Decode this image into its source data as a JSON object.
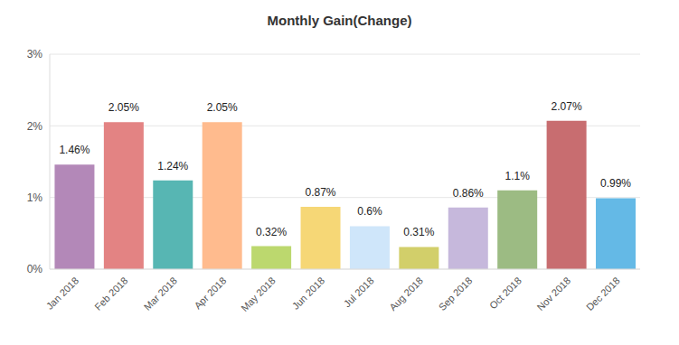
{
  "chart_data": {
    "type": "bar",
    "title": "Monthly Gain(Change)",
    "categories": [
      "Jan 2018",
      "Feb 2018",
      "Mar 2018",
      "Apr 2018",
      "May 2018",
      "Jun 2018",
      "Jul 2018",
      "Aug 2018",
      "Sep 2018",
      "Oct 2018",
      "Nov 2018",
      "Dec 2018"
    ],
    "values": [
      1.46,
      2.05,
      1.24,
      2.05,
      0.32,
      0.87,
      0.6,
      0.31,
      0.86,
      1.1,
      2.07,
      0.99
    ],
    "value_labels": [
      "1.46%",
      "2.05%",
      "1.24%",
      "2.05%",
      "0.32%",
      "0.87%",
      "0.6%",
      "0.31%",
      "0.86%",
      "1.1%",
      "2.07%",
      "0.99%"
    ],
    "colors": [
      "#b388b8",
      "#e38383",
      "#57b6b3",
      "#ffbb8e",
      "#bcd86e",
      "#f6d776",
      "#cfe6fa",
      "#d2cf6a",
      "#c6b8dc",
      "#9cbb83",
      "#c86d70",
      "#64b9e6"
    ],
    "ylim": [
      0,
      3
    ],
    "yticks": [
      {
        "value": 0,
        "label": "0%"
      },
      {
        "value": 1,
        "label": "1%"
      },
      {
        "value": 2,
        "label": "2%"
      },
      {
        "value": 3,
        "label": "3%"
      }
    ],
    "grid": true,
    "data_labels": true
  }
}
